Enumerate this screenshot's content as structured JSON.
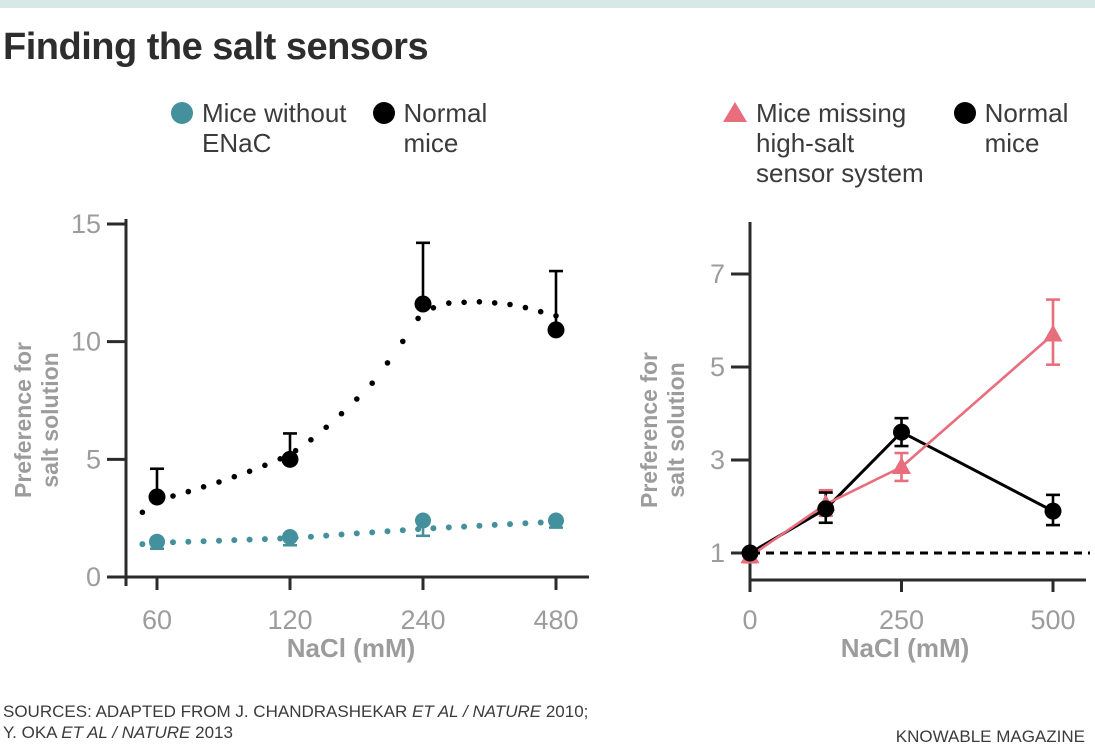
{
  "header": {
    "title": "Finding the salt sensors"
  },
  "colors": {
    "accent_bar": "#d7e8e7",
    "teal": "#45909d",
    "pink": "#e96e7d",
    "black": "#000000",
    "axis": "#2b2b2b",
    "muted_label": "#9c9c9c",
    "text_dark": "#3b3b3b",
    "title": "#2d2d2d"
  },
  "chart_data": [
    {
      "type": "line",
      "title": "",
      "xlabel": "NaCl (mM)",
      "ylabel": "Preference for\nsalt solution",
      "categories": [
        "60",
        "120",
        "240",
        "480"
      ],
      "y_ticks": [
        0,
        5,
        10,
        15
      ],
      "ylim": [
        0,
        15.2
      ],
      "grid": false,
      "legend_position": "top",
      "legend": [
        {
          "label": "Mice without\nENaC",
          "marker": "circle",
          "color_key": "teal"
        },
        {
          "label": "Normal\nmice",
          "marker": "circle",
          "color_key": "black"
        }
      ],
      "series": [
        {
          "name": "Normal mice",
          "color_key": "black",
          "marker": "circle",
          "line": "dotted-curve",
          "values": [
            3.4,
            5.0,
            11.6,
            10.5
          ],
          "error_up": [
            4.6,
            6.1,
            14.2,
            13.0
          ],
          "error_down": null,
          "curve_anchors": [
            [
              -0.11,
              2.75
            ],
            [
              0,
              3.25
            ],
            [
              0.25,
              3.65
            ],
            [
              0.5,
              4.1
            ],
            [
              0.75,
              4.6
            ],
            [
              1,
              5.2
            ],
            [
              1.2,
              6.0
            ],
            [
              1.4,
              7.0
            ],
            [
              1.6,
              8.1
            ],
            [
              1.8,
              9.6
            ],
            [
              2,
              11.3
            ],
            [
              2.2,
              11.65
            ],
            [
              2.45,
              11.7
            ],
            [
              2.7,
              11.55
            ],
            [
              3,
              11.1
            ]
          ]
        },
        {
          "name": "Mice without ENaC",
          "color_key": "teal",
          "marker": "circle",
          "line": "dotted-curve",
          "values": [
            1.5,
            1.7,
            2.4,
            2.4
          ],
          "error_up": null,
          "error_down": [
            1.2,
            1.35,
            1.75,
            2.1
          ],
          "curve_anchors": [
            [
              -0.11,
              1.4
            ],
            [
              0,
              1.45
            ],
            [
              0.5,
              1.55
            ],
            [
              1,
              1.65
            ],
            [
              1.5,
              1.85
            ],
            [
              2,
              2.05
            ],
            [
              2.5,
              2.2
            ],
            [
              3,
              2.35
            ]
          ]
        }
      ]
    },
    {
      "type": "line",
      "title": "",
      "xlabel": "NaCl (mM)",
      "ylabel": "Preference for\nsalt solution",
      "x": [
        0,
        125,
        250,
        500
      ],
      "x_ticks": [
        0,
        250,
        500
      ],
      "y_ticks": [
        1,
        3,
        5,
        7
      ],
      "ylim": [
        0.6,
        8.1
      ],
      "grid": false,
      "ref_line_y": 1,
      "legend_position": "top",
      "legend": [
        {
          "label": "Mice missing\nhigh-salt\nsensor system",
          "marker": "triangle",
          "color_key": "pink"
        },
        {
          "label": "Normal\nmice",
          "marker": "circle",
          "color_key": "black"
        }
      ],
      "series": [
        {
          "name": "Mice missing high-salt sensor system",
          "color_key": "pink",
          "marker": "triangle",
          "line": "solid",
          "values": [
            0.93,
            2.05,
            2.85,
            5.7
          ],
          "error_low": [
            0.8,
            1.8,
            2.55,
            5.05
          ],
          "error_high": [
            1.02,
            2.35,
            3.15,
            6.45
          ]
        },
        {
          "name": "Normal mice",
          "color_key": "black",
          "marker": "circle",
          "line": "solid",
          "values": [
            1.0,
            1.95,
            3.6,
            1.9
          ],
          "error_low": [
            null,
            1.65,
            3.3,
            1.6
          ],
          "error_high": [
            null,
            2.3,
            3.9,
            2.25
          ]
        }
      ]
    }
  ],
  "footer": {
    "lines": [
      {
        "segments": [
          {
            "t": "SOURCES: ADAPTED FROM J. CHANDRASHEKAR ",
            "i": false
          },
          {
            "t": "ET AL / NATURE",
            "i": true
          },
          {
            "t": " 2010;",
            "i": false
          }
        ]
      },
      {
        "segments": [
          {
            "t": "Y. OKA ",
            "i": false
          },
          {
            "t": "ET AL / NATURE",
            "i": true
          },
          {
            "t": " 2013",
            "i": false
          }
        ]
      }
    ],
    "credit": "KNOWABLE MAGAZINE"
  }
}
